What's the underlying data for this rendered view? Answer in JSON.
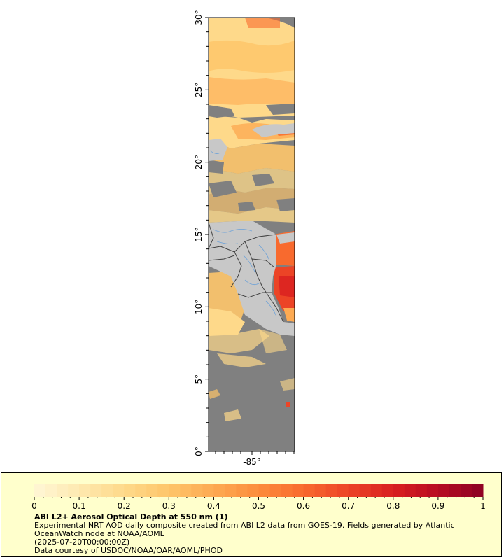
{
  "map": {
    "lat_labels": [
      "0°",
      "5°",
      "10°",
      "15°",
      "20°",
      "25°",
      "30°"
    ],
    "lon_label": "-85°",
    "colors": {
      "no_data": "#808080",
      "land": "#c8c8c8",
      "border": "#404040",
      "river": "#6aa0d8"
    }
  },
  "legend": {
    "title": "ABI L2+ Aerosol Optical Depth at 550 nm (1)",
    "description": "Experimental NRT AOD daily composite created from ABI L2 data from GOES-19. Fields generated by Atlantic OceanWatch node at NOAA/AOML",
    "timestamp": "(2025-07-20T00:00:00Z)",
    "credit": "Data courtesy of USDOC/NOAA/OAR/AOML/PHOD",
    "tick_labels": [
      "0",
      "0.1",
      "0.2",
      "0.3",
      "0.4",
      "0.5",
      "0.6",
      "0.7",
      "0.8",
      "0.9",
      "1"
    ],
    "range": [
      0,
      1
    ],
    "colors": [
      "#fff7d6",
      "#fee9b0",
      "#fed98a",
      "#fec56a",
      "#fdaa52",
      "#fc8c3c",
      "#f86a2e",
      "#ec4426",
      "#d91f20",
      "#b70c22",
      "#8b0023"
    ]
  }
}
